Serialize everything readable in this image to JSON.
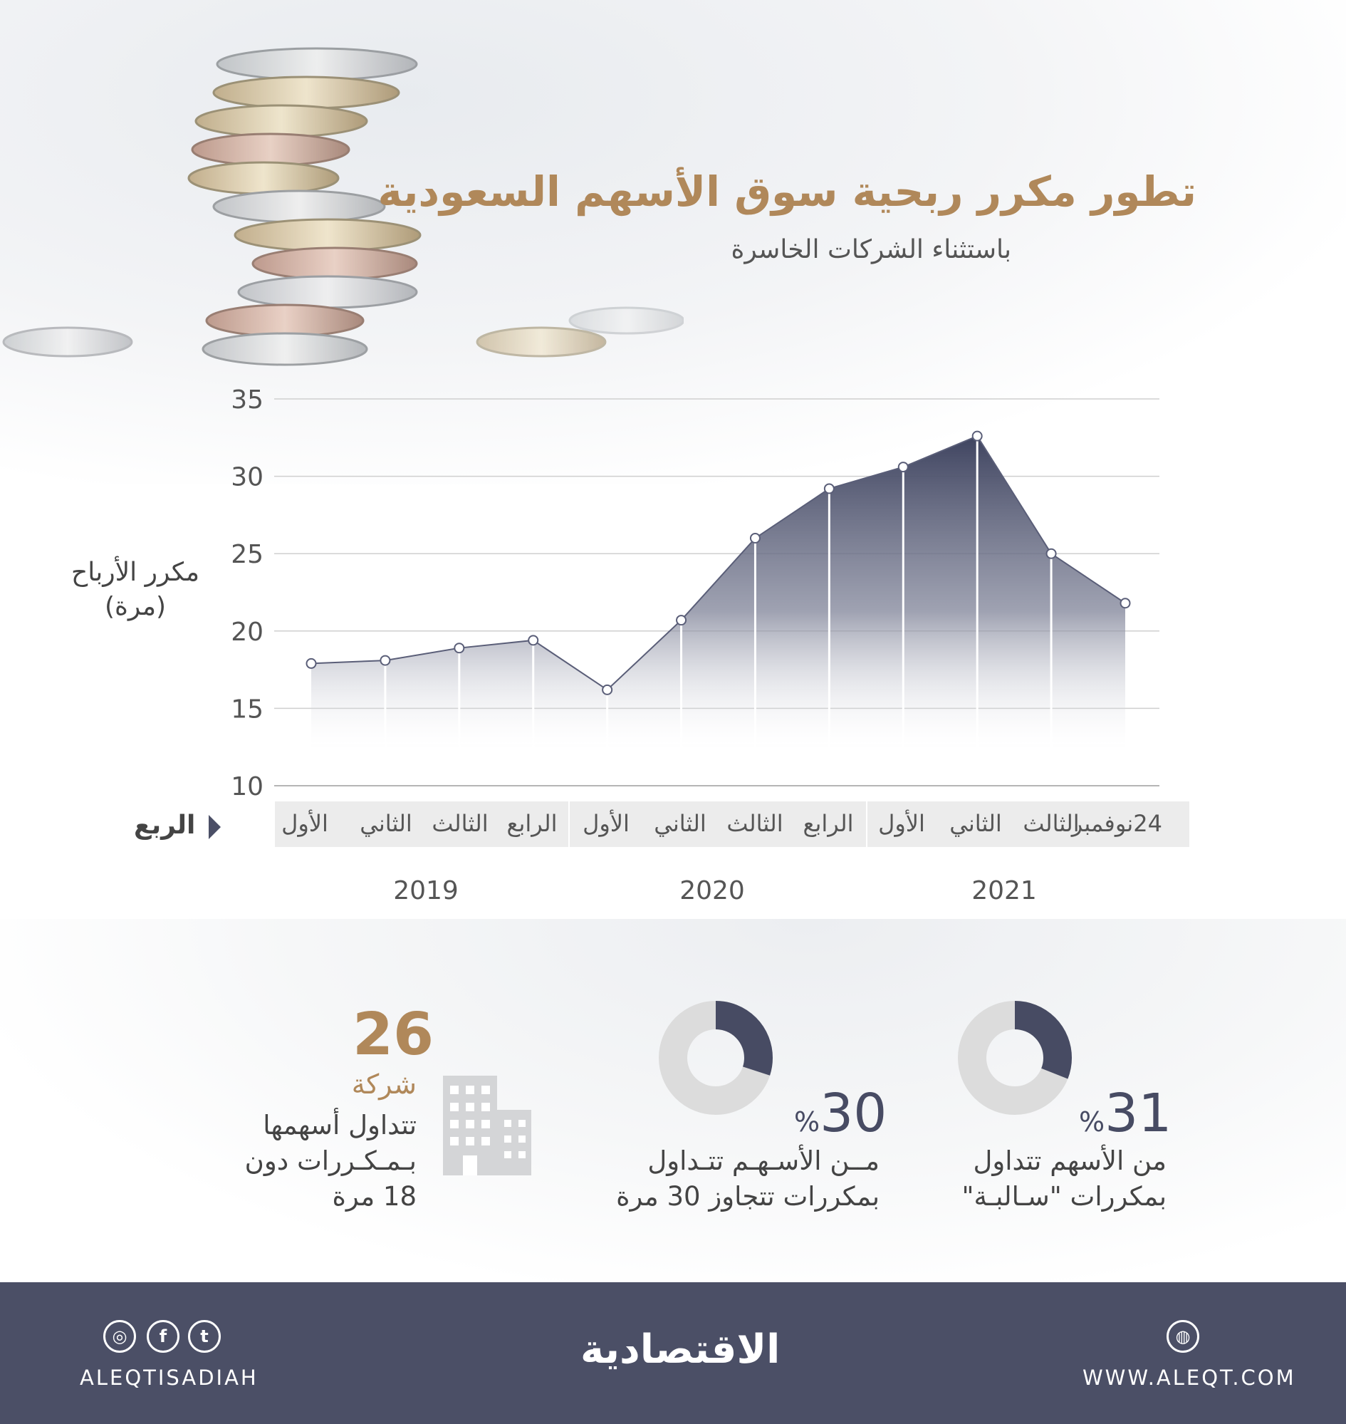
{
  "header": {
    "title": "تطور مكرر ربحية سوق الأسهم السعودية",
    "subtitle": "باستثناء الشركات الخاسرة"
  },
  "chart_data": {
    "type": "area",
    "ylabel_line1": "مكرر الأرباح",
    "ylabel_line2": "(مرة)",
    "xlabel": "الربع",
    "ylim": [
      10,
      35
    ],
    "yticks": [
      35,
      30,
      25,
      20,
      15,
      10
    ],
    "grid": true,
    "x": [
      "2019 الأول",
      "2019 الثاني",
      "2019 الثالث",
      "2019 الرابع",
      "2020 الأول",
      "2020 الثاني",
      "2020 الثالث",
      "2020 الرابع",
      "2021 الأول",
      "2021 الثاني",
      "2021 الثالث",
      "24نوفمبر"
    ],
    "quarter_labels": [
      "الأول",
      "الثاني",
      "الثالث",
      "الرابع",
      "الأول",
      "الثاني",
      "الثالث",
      "الرابع",
      "الأول",
      "الثاني",
      "الثالث",
      "24نوفمبر"
    ],
    "years": [
      "2019",
      "2020",
      "2021"
    ],
    "values": [
      17.9,
      18.1,
      18.9,
      19.4,
      16.2,
      20.7,
      26.0,
      29.2,
      30.6,
      32.6,
      25.0,
      21.8
    ],
    "colors": {
      "area": "#4b4f66",
      "line": "#5a5e78",
      "marker_fill": "#ffffff"
    }
  },
  "stats": [
    {
      "value": "31",
      "unit": "%",
      "line1": "من الأسهم تتداول",
      "line2": "بمكررات \"سـالبـة\"",
      "fraction": 0.31
    },
    {
      "value": "30",
      "unit": "%",
      "line1": "مــن الأسـهـم تتـداول",
      "line2": "بمكررات تتجاوز 30 مرة",
      "fraction": 0.3
    },
    {
      "value": "26",
      "unit": "شركة",
      "line1": "تتداول أسهمها",
      "line2": "بـمـكـررات دون",
      "line3": "18 مرة"
    }
  ],
  "footer": {
    "social_handle": "ALEQTISADIAH",
    "logo": "الاقتصادية",
    "website": "WWW.ALEQT.COM",
    "icons": [
      "instagram-icon",
      "facebook-icon",
      "twitter-icon",
      "dribbble-icon"
    ],
    "background": "#4b4f66"
  }
}
